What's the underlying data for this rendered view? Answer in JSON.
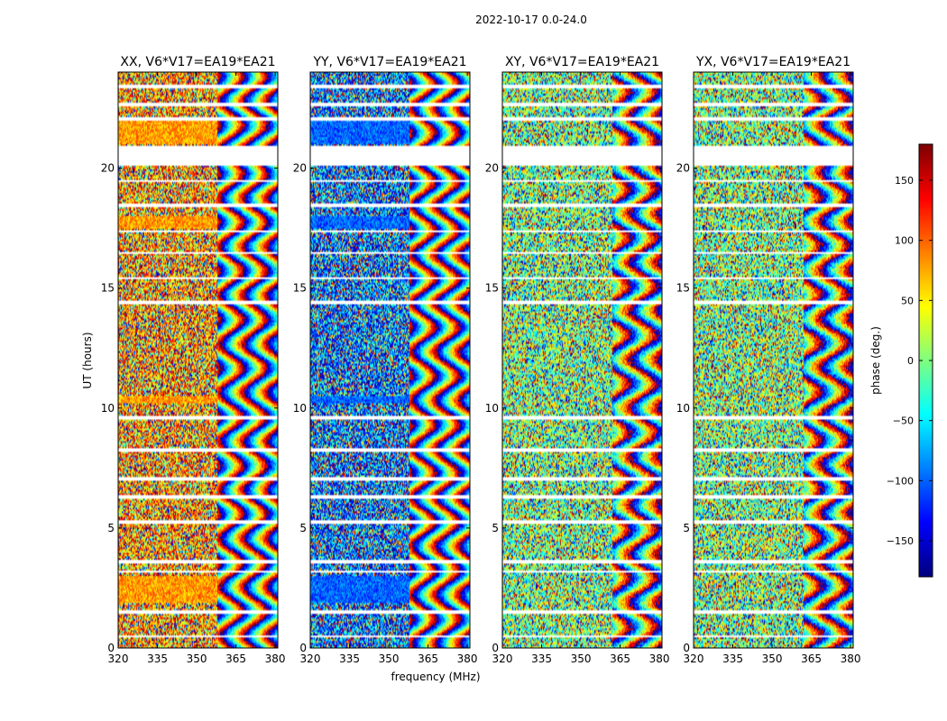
{
  "chart_data": {
    "type": "heatmap",
    "title": "2022-10-17 0.0-24.0",
    "xlabel": "frequency (MHz)",
    "ylabel": "UT (hours)",
    "xlim": [
      320,
      381
    ],
    "ylim": [
      0,
      24
    ],
    "x_ticks": [
      320,
      335,
      350,
      365,
      380
    ],
    "y_ticks": [
      0,
      5,
      10,
      15,
      20
    ],
    "panels": [
      {
        "title": "XX, V6*V17=EA19*EA21",
        "bias_phase": 80
      },
      {
        "title": "YY, V6*V17=EA19*EA21",
        "bias_phase": -100
      },
      {
        "title": "XY, V6*V17=EA19*EA21",
        "bias_phase": 0
      },
      {
        "title": "YX, V6*V17=EA19*EA21",
        "bias_phase": 0
      }
    ],
    "flagged_ut_bands": [
      [
        0.45,
        0.55
      ],
      [
        1.45,
        1.6
      ],
      [
        3.15,
        3.25
      ],
      [
        3.55,
        3.65
      ],
      [
        5.2,
        5.3
      ],
      [
        6.25,
        6.35
      ],
      [
        7.0,
        7.1
      ],
      [
        8.2,
        8.3
      ],
      [
        9.55,
        9.65
      ],
      [
        14.35,
        14.45
      ],
      [
        15.35,
        15.45
      ],
      [
        16.4,
        16.5
      ],
      [
        17.3,
        17.4
      ],
      [
        18.4,
        18.5
      ],
      [
        19.4,
        19.5
      ],
      [
        20.1,
        20.95
      ],
      [
        21.95,
        22.1
      ],
      [
        22.6,
        22.7
      ],
      [
        23.3,
        23.45
      ]
    ],
    "colorbar": {
      "label": "phase (deg.)",
      "range": [
        -180,
        180
      ],
      "ticks": [
        150,
        100,
        50,
        0,
        -50,
        -100,
        -150
      ],
      "tick_labels": [
        "150",
        "100",
        "50",
        "0",
        "−50",
        "−100",
        "−150"
      ],
      "colormap": "jet"
    }
  }
}
